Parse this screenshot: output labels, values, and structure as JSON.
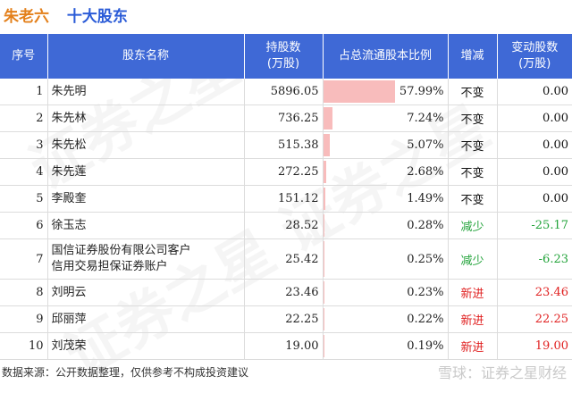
{
  "title": {
    "company": "朱老六",
    "subject": "十大股东"
  },
  "columns": {
    "rank": "序号",
    "name": "股东名称",
    "shares_l1": "持股数",
    "shares_l2": "(万股)",
    "ratio": "占总流通股本比例",
    "change": "增减",
    "delta_l1": "变动股数",
    "delta_l2": "(万股)"
  },
  "rows": [
    {
      "rank": "1",
      "name": "朱先明",
      "name2": "",
      "shares": "5896.05",
      "ratio": "57.99%",
      "ratio_value": 57.99,
      "change": "不变",
      "delta": "0.00",
      "tone": "black"
    },
    {
      "rank": "2",
      "name": "朱先林",
      "name2": "",
      "shares": "736.25",
      "ratio": "7.24%",
      "ratio_value": 7.24,
      "change": "不变",
      "delta": "0.00",
      "tone": "black"
    },
    {
      "rank": "3",
      "name": "朱先松",
      "name2": "",
      "shares": "515.38",
      "ratio": "5.07%",
      "ratio_value": 5.07,
      "change": "不变",
      "delta": "0.00",
      "tone": "black"
    },
    {
      "rank": "4",
      "name": "朱先莲",
      "name2": "",
      "shares": "272.25",
      "ratio": "2.68%",
      "ratio_value": 2.68,
      "change": "不变",
      "delta": "0.00",
      "tone": "black"
    },
    {
      "rank": "5",
      "name": "李殿奎",
      "name2": "",
      "shares": "151.12",
      "ratio": "1.49%",
      "ratio_value": 1.49,
      "change": "不变",
      "delta": "0.00",
      "tone": "black"
    },
    {
      "rank": "6",
      "name": "徐玉志",
      "name2": "",
      "shares": "28.52",
      "ratio": "0.28%",
      "ratio_value": 0.28,
      "change": "减少",
      "delta": "-25.17",
      "tone": "green"
    },
    {
      "rank": "7",
      "name": "国信证券股份有限公司客户",
      "name2": "信用交易担保证券账户",
      "shares": "25.42",
      "ratio": "0.25%",
      "ratio_value": 0.25,
      "change": "减少",
      "delta": "-6.23",
      "tone": "green"
    },
    {
      "rank": "8",
      "name": "刘明云",
      "name2": "",
      "shares": "23.46",
      "ratio": "0.23%",
      "ratio_value": 0.23,
      "change": "新进",
      "delta": "23.46",
      "tone": "red"
    },
    {
      "rank": "9",
      "name": "邱丽萍",
      "name2": "",
      "shares": "22.25",
      "ratio": "0.22%",
      "ratio_value": 0.22,
      "change": "新进",
      "delta": "22.25",
      "tone": "red"
    },
    {
      "rank": "10",
      "name": "刘茂荣",
      "name2": "",
      "shares": "19.00",
      "ratio": "0.19%",
      "ratio_value": 0.19,
      "change": "新进",
      "delta": "19.00",
      "tone": "red"
    }
  ],
  "ratio_bar_max": 100,
  "colors": {
    "header": "#3f69d6",
    "bar": "#f8bcbc",
    "decrease": "#22a33a",
    "increase": "#e02020",
    "company": "#e3801b",
    "subject": "#2a5bd7"
  },
  "footer": {
    "source": "数据来源：公开数据整理，仅供参考不构成投资建议",
    "brand": "雪球：证券之星财经"
  }
}
